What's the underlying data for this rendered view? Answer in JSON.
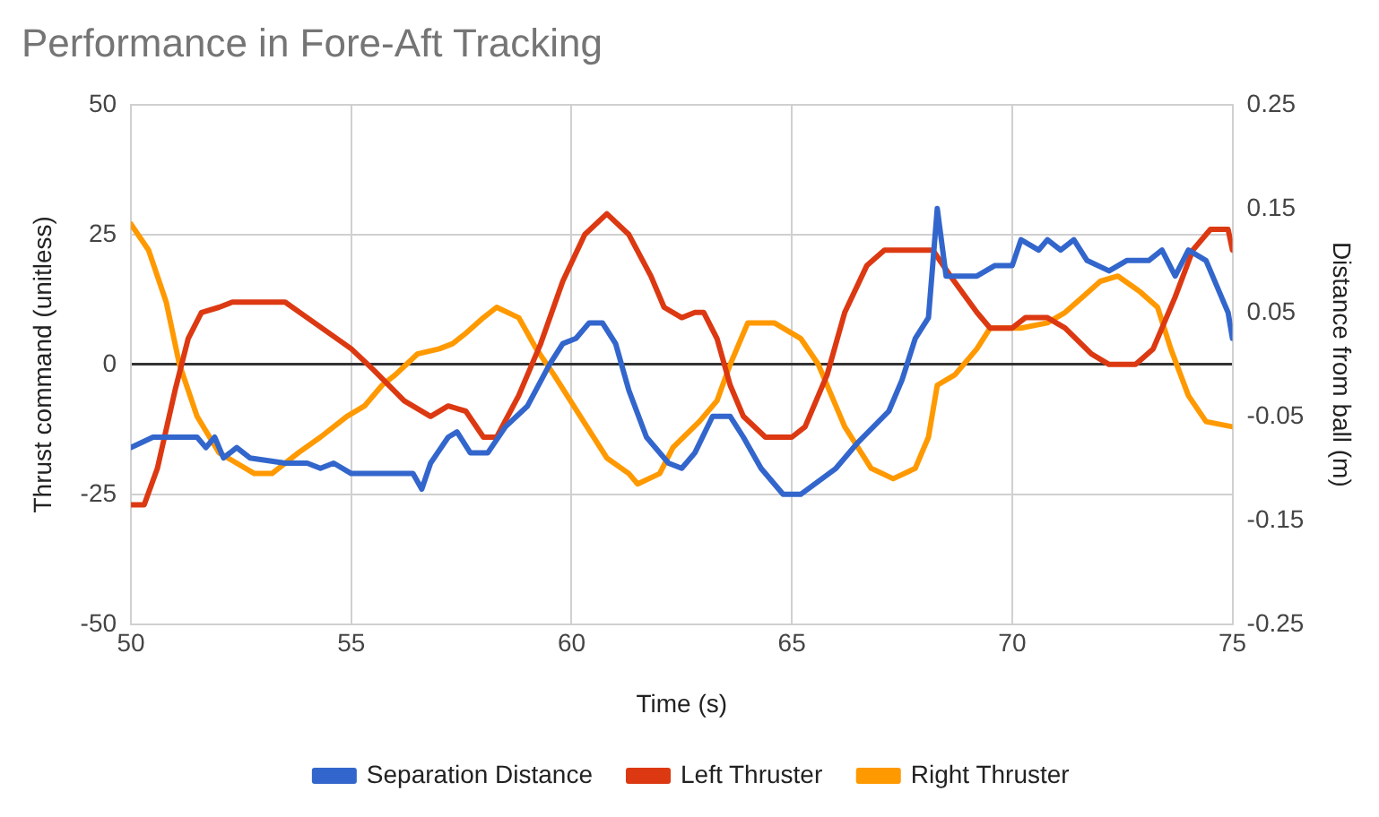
{
  "chart_data": {
    "type": "line",
    "title": "Performance in Fore-Aft Tracking",
    "xlabel": "Time (s)",
    "ylabel": "Thrust command (unitless)",
    "y2label": "Distance from ball (m)",
    "xlim": [
      50,
      75
    ],
    "xticks": [
      50,
      55,
      60,
      65,
      70,
      75
    ],
    "ylim": [
      -50,
      50
    ],
    "yticks": [
      -50,
      -25,
      0,
      25,
      50
    ],
    "y2lim": [
      -0.25,
      0.25
    ],
    "y2ticks": [
      -0.25,
      -0.15,
      -0.05,
      0.05,
      0.15,
      0.25
    ],
    "grid": true,
    "legend": "bottom",
    "marker": "none",
    "line_style": "solid",
    "series": [
      {
        "name": "Separation Distance",
        "color": "#3366cc",
        "axis": "y2",
        "x": [
          50,
          50.5,
          51.5,
          51.7,
          51.9,
          52.1,
          52.4,
          52.7,
          53.5,
          54,
          54.3,
          54.6,
          55,
          55.5,
          56.4,
          56.6,
          56.8,
          57.2,
          57.4,
          57.7,
          58.1,
          58.5,
          59,
          59.5,
          59.8,
          60.1,
          60.4,
          60.7,
          61,
          61.3,
          61.7,
          62.2,
          62.5,
          62.8,
          63.2,
          63.6,
          63.9,
          64.3,
          64.8,
          65.2,
          66,
          66.5,
          67.2,
          67.5,
          67.8,
          68.1,
          68.3,
          68.5,
          69.2,
          69.6,
          70,
          70.2,
          70.6,
          70.8,
          71.1,
          71.4,
          71.7,
          72.2,
          72.6,
          73.1,
          73.4,
          73.7,
          74,
          74.4,
          74.9,
          75
        ],
        "values": [
          -0.08,
          -0.07,
          -0.07,
          -0.08,
          -0.07,
          -0.09,
          -0.08,
          -0.09,
          -0.095,
          -0.095,
          -0.1,
          -0.095,
          -0.105,
          -0.105,
          -0.105,
          -0.12,
          -0.095,
          -0.07,
          -0.065,
          -0.085,
          -0.085,
          -0.06,
          -0.04,
          0,
          0.02,
          0.025,
          0.04,
          0.04,
          0.02,
          -0.025,
          -0.07,
          -0.095,
          -0.1,
          -0.085,
          -0.05,
          -0.05,
          -0.07,
          -0.1,
          -0.125,
          -0.125,
          -0.1,
          -0.075,
          -0.045,
          -0.015,
          0.025,
          0.045,
          0.15,
          0.085,
          0.085,
          0.095,
          0.095,
          0.12,
          0.11,
          0.12,
          0.11,
          0.12,
          0.1,
          0.09,
          0.1,
          0.1,
          0.11,
          0.085,
          0.11,
          0.1,
          0.05,
          0.025
        ]
      },
      {
        "name": "Left Thruster",
        "color": "#dc3912",
        "x": [
          50,
          50.3,
          50.6,
          51,
          51.3,
          51.6,
          52,
          52.3,
          53.5,
          54,
          55,
          55.5,
          56.2,
          56.8,
          57.2,
          57.6,
          58,
          58.3,
          58.8,
          59.3,
          59.8,
          60.3,
          60.8,
          61.3,
          61.8,
          62.1,
          62.5,
          62.8,
          63,
          63.3,
          63.6,
          63.9,
          64.4,
          65,
          65.3,
          65.8,
          66.2,
          66.7,
          67.1,
          68.2,
          68.6,
          69.2,
          69.5,
          70,
          70.3,
          70.8,
          71.2,
          71.8,
          72.2,
          72.8,
          73.2,
          73.7,
          74.1,
          74.5,
          74.9,
          75
        ],
        "values": [
          -27,
          -27,
          -20,
          -5,
          5,
          10,
          11,
          12,
          12,
          9,
          3,
          -1,
          -7,
          -10,
          -8,
          -9,
          -14,
          -14,
          -6,
          4,
          16,
          25,
          29,
          25,
          17,
          11,
          9,
          10,
          10,
          5,
          -4,
          -10,
          -14,
          -14,
          -12,
          -2,
          10,
          19,
          22,
          22,
          17,
          10,
          7,
          7,
          9,
          9,
          7,
          2,
          0,
          0,
          3,
          13,
          22,
          26,
          26,
          22
        ]
      },
      {
        "name": "Right Thruster",
        "color": "#ff9900",
        "x": [
          50,
          50.4,
          50.8,
          51.1,
          51.5,
          52,
          52.4,
          52.8,
          53.2,
          53.8,
          54.3,
          54.9,
          55.3,
          55.7,
          56,
          56.5,
          57,
          57.3,
          57.6,
          58,
          58.3,
          58.8,
          59.2,
          59.6,
          60.2,
          60.8,
          61.3,
          61.5,
          62,
          62.3,
          62.9,
          63.3,
          63.6,
          64,
          64.6,
          65.2,
          65.6,
          66.2,
          66.8,
          67.3,
          67.8,
          68.1,
          68.3,
          68.7,
          69.2,
          69.5,
          70.2,
          70.8,
          71.2,
          71.6,
          72,
          72.4,
          72.9,
          73.3,
          73.6,
          74,
          74.4,
          75
        ],
        "values": [
          27,
          22,
          12,
          0,
          -10,
          -17,
          -19,
          -21,
          -21,
          -17,
          -14,
          -10,
          -8,
          -4,
          -2,
          2,
          3,
          4,
          6,
          9,
          11,
          9,
          3,
          -2,
          -10,
          -18,
          -21,
          -23,
          -21,
          -16,
          -11,
          -7,
          0,
          8,
          8,
          5,
          0,
          -12,
          -20,
          -22,
          -20,
          -14,
          -4,
          -2,
          3,
          7,
          7,
          8,
          10,
          13,
          16,
          17,
          14,
          11,
          3,
          -6,
          -11,
          -12
        ]
      }
    ]
  }
}
